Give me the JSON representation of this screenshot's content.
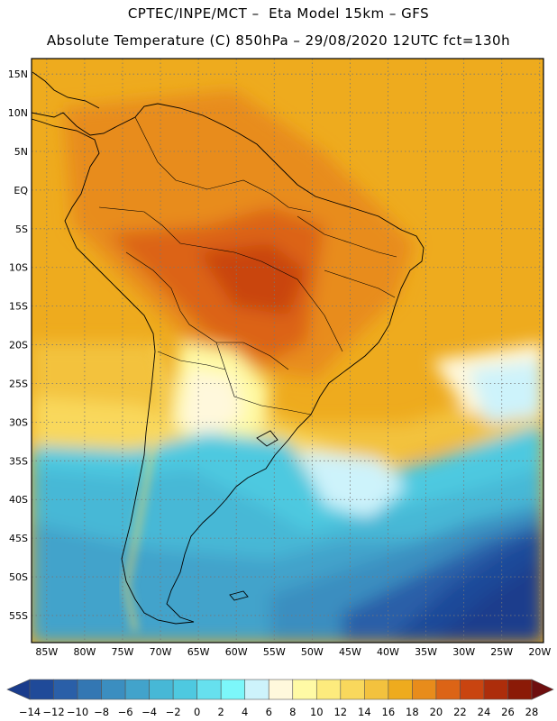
{
  "header": {
    "line1": "CPTEC/INPE/MCT –  Eta Model 15km – GFS",
    "line2": "Absolute Temperature (C) 850hPa – 29/08/2020 12UTC fct=130h"
  },
  "map": {
    "lat_ticks": [
      "15N",
      "10N",
      "5N",
      "EQ",
      "5S",
      "10S",
      "15S",
      "20S",
      "25S",
      "30S",
      "35S",
      "40S",
      "45S",
      "50S",
      "55S"
    ],
    "lat_values": [
      15,
      10,
      5,
      0,
      -5,
      -10,
      -15,
      -20,
      -25,
      -30,
      -35,
      -40,
      -45,
      -50,
      -55
    ],
    "lon_ticks": [
      "85W",
      "80W",
      "75W",
      "70W",
      "65W",
      "60W",
      "55W",
      "50W",
      "45W",
      "40W",
      "35W",
      "30W",
      "25W",
      "20W"
    ],
    "lon_values": [
      -85,
      -80,
      -75,
      -70,
      -65,
      -60,
      -55,
      -50,
      -45,
      -40,
      -35,
      -30,
      -25,
      -20
    ],
    "extent": {
      "lon_min": -87,
      "lon_max": -19.5,
      "lat_min": -58.5,
      "lat_max": 17
    },
    "gridlines": "dotted"
  },
  "colorbar": {
    "labels": [
      "-14",
      "-12",
      "-10",
      "-8",
      "-6",
      "-4",
      "-2",
      "0",
      "2",
      "4",
      "6",
      "8",
      "10",
      "12",
      "14",
      "16",
      "18",
      "20",
      "22",
      "24",
      "26",
      "28"
    ],
    "colors": [
      "#1a3c8c",
      "#1f4a99",
      "#2a5fa8",
      "#3377b3",
      "#3b8ec0",
      "#42a3cb",
      "#47b8d6",
      "#4ec9e0",
      "#66e0ee",
      "#7cf7fa",
      "#cdf3fb",
      "#fff8dc",
      "#fffaa5",
      "#fdeb7d",
      "#f9d85c",
      "#f3c23e",
      "#eeab1e",
      "#e88c1b",
      "#dc6416",
      "#c94410",
      "#ad2d0b",
      "#8b1a07",
      "#6e0f0f"
    ]
  }
}
